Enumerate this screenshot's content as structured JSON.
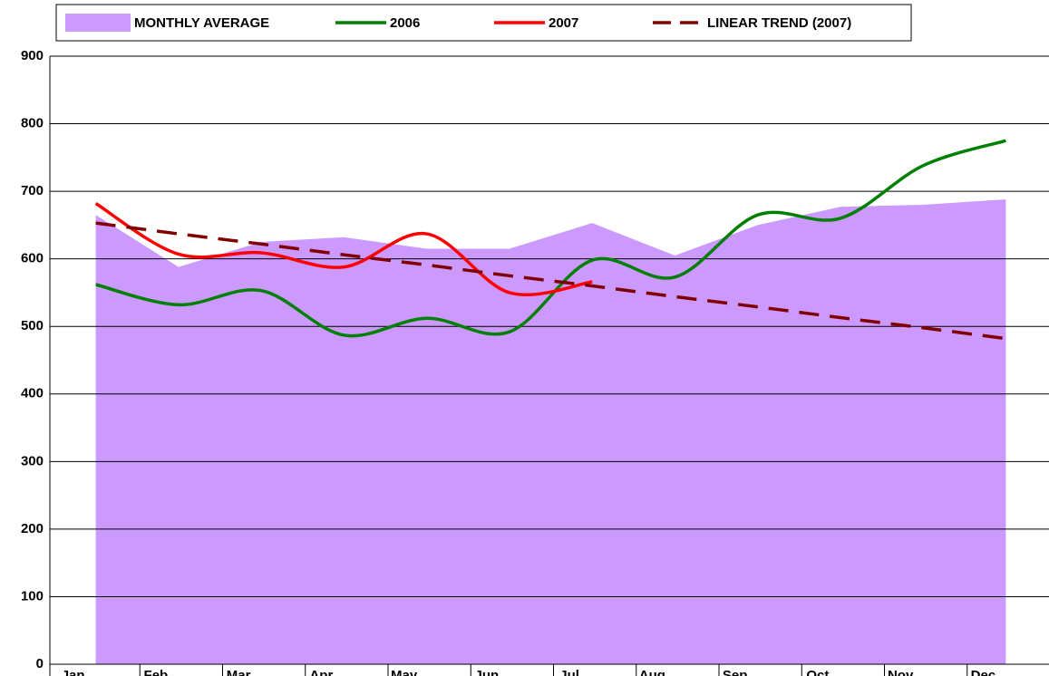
{
  "chart_data": {
    "type": "line",
    "categories": [
      "Jan",
      "Feb",
      "Mar",
      "Apr",
      "May",
      "Jun",
      "Jul",
      "Aug",
      "Sep",
      "Oct",
      "Nov",
      "Dec"
    ],
    "series": [
      {
        "name": "MONTHLY AVERAGE",
        "style": "area",
        "color": "#cc99ff",
        "values": [
          665,
          588,
          625,
          632,
          615,
          615,
          653,
          605,
          650,
          677,
          680,
          688
        ]
      },
      {
        "name": "2006",
        "style": "solid",
        "color": "#008000",
        "values": [
          562,
          532,
          553,
          487,
          512,
          492,
          598,
          573,
          665,
          660,
          738,
          775
        ]
      },
      {
        "name": "2007",
        "style": "solid",
        "color": "#ff0000",
        "values": [
          682,
          607,
          609,
          588,
          637,
          550,
          566,
          null,
          null,
          null,
          null,
          null
        ]
      },
      {
        "name": "LINEAR TREND (2007)",
        "style": "dashed",
        "color": "#800000",
        "values": [
          653,
          637,
          622,
          606,
          591,
          575,
          560,
          544,
          529,
          513,
          498,
          482
        ]
      }
    ],
    "ylim": [
      0,
      900
    ],
    "yticks": [
      0,
      100,
      200,
      300,
      400,
      500,
      600,
      700,
      800,
      900
    ],
    "grid": true
  }
}
